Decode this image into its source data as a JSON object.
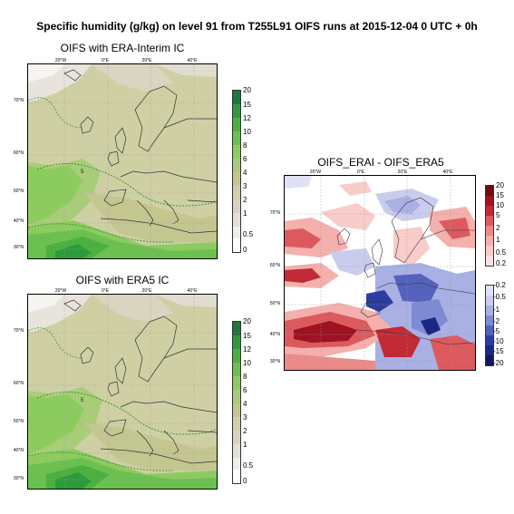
{
  "main_title": "Specific humidity (g/kg) on level 91 from T255L91 OIFS runs at 2015-12-04 0 UTC + 0h",
  "panels": {
    "erai": {
      "title": "OIFS with ERA-Interim IC",
      "lon_labels": [
        "20°W",
        "0°E",
        "20°E",
        "40°E"
      ],
      "lat_labels": [
        "70°N",
        "60°N",
        "50°N",
        "40°N",
        "30°N"
      ],
      "contour_label": "5",
      "colorbar_ticks": [
        "20",
        "15",
        "12",
        "10",
        "8",
        "6",
        "4",
        "3",
        "2",
        "1",
        "0.5",
        "0"
      ]
    },
    "era5": {
      "title": "OIFS with ERA5 IC",
      "lon_labels": [
        "20°W",
        "0°E",
        "20°E",
        "40°E"
      ],
      "lat_labels": [
        "70°N",
        "60°N",
        "50°N",
        "40°N",
        "30°N"
      ],
      "contour_label": "5",
      "colorbar_ticks": [
        "20",
        "15",
        "12",
        "10",
        "8",
        "6",
        "4",
        "3",
        "2",
        "1",
        "0.5",
        "0"
      ]
    },
    "diff": {
      "title": "OIFS_ERAI - OIFS_ERA5",
      "lon_labels": [
        "20°W",
        "0°E",
        "20°E",
        "40°E"
      ],
      "lat_labels": [
        "70°N",
        "60°N",
        "50°N",
        "40°N",
        "30°N"
      ],
      "colorbar_pos_ticks": [
        "20",
        "15",
        "10",
        "5",
        "2",
        "1",
        "0.5",
        "0.2"
      ],
      "colorbar_neg_ticks": [
        "-0.2",
        "-0.5",
        "-1",
        "-2",
        "-5",
        "-10",
        "-15",
        "-20"
      ]
    }
  },
  "colors": {
    "humidity_scale": [
      "#1a7a3a",
      "#2d9a3c",
      "#4cb040",
      "#6cc050",
      "#8ccc5e",
      "#a8cc78",
      "#c4c690",
      "#d2cdaa",
      "#d8d2c0",
      "#e4e0d8",
      "#f0eeea",
      "#ffffff"
    ],
    "diff_pos_scale": [
      "#6e0a14",
      "#9c1422",
      "#c22a36",
      "#dc5a5e",
      "#ec8a88",
      "#f4b0ac",
      "#f8ccc8",
      "#fbe2e0"
    ],
    "diff_neg_scale": [
      "#e0e2f4",
      "#c8cdee",
      "#a8b0e4",
      "#7e8ad4",
      "#5462bc",
      "#2e3ca0",
      "#1c2880",
      "#0e1660"
    ]
  }
}
